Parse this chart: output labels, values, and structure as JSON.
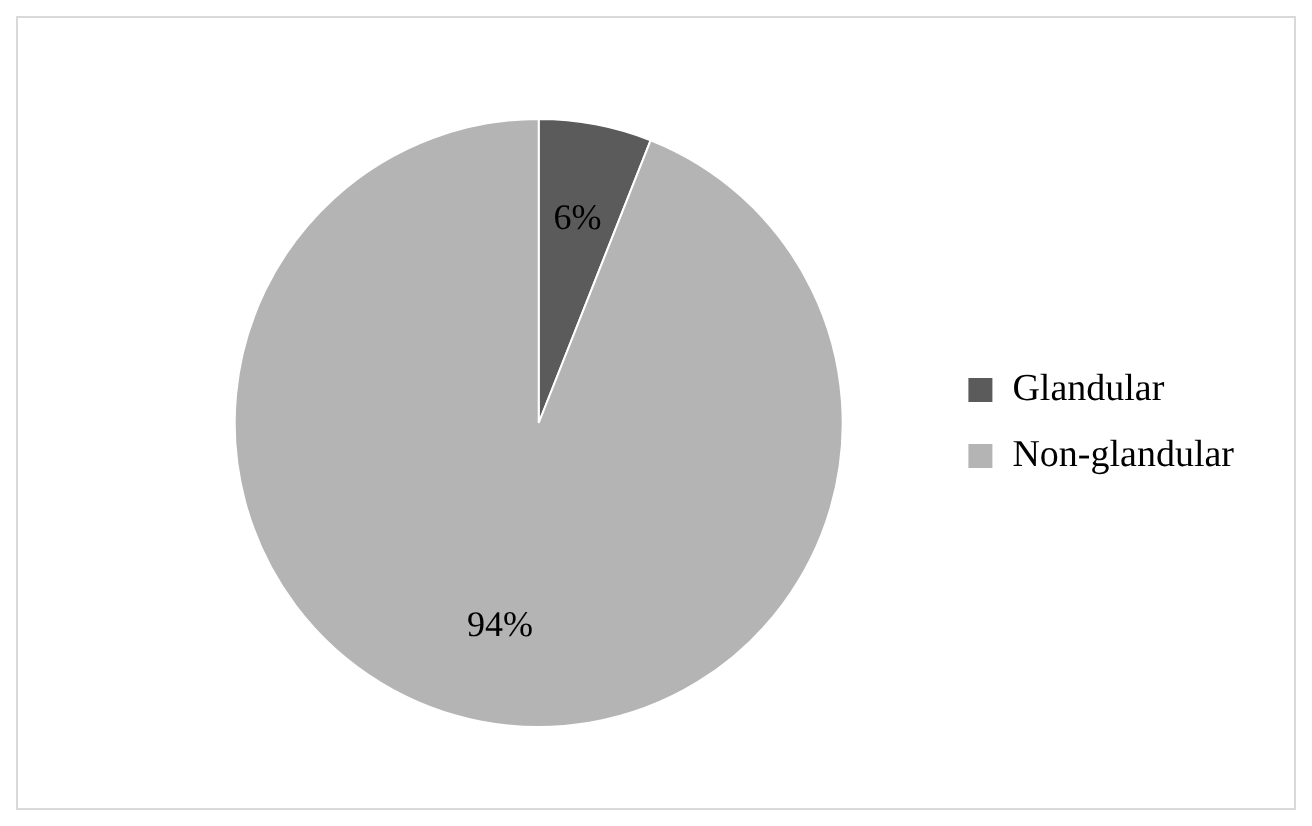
{
  "chart_data": {
    "type": "pie",
    "categories": [
      "Glandular",
      "Non-glandular"
    ],
    "values": [
      6,
      94
    ],
    "value_labels": [
      "6%",
      "94%"
    ],
    "colors": [
      "#5b5b5b",
      "#b4b4b4"
    ],
    "legend": "right"
  }
}
